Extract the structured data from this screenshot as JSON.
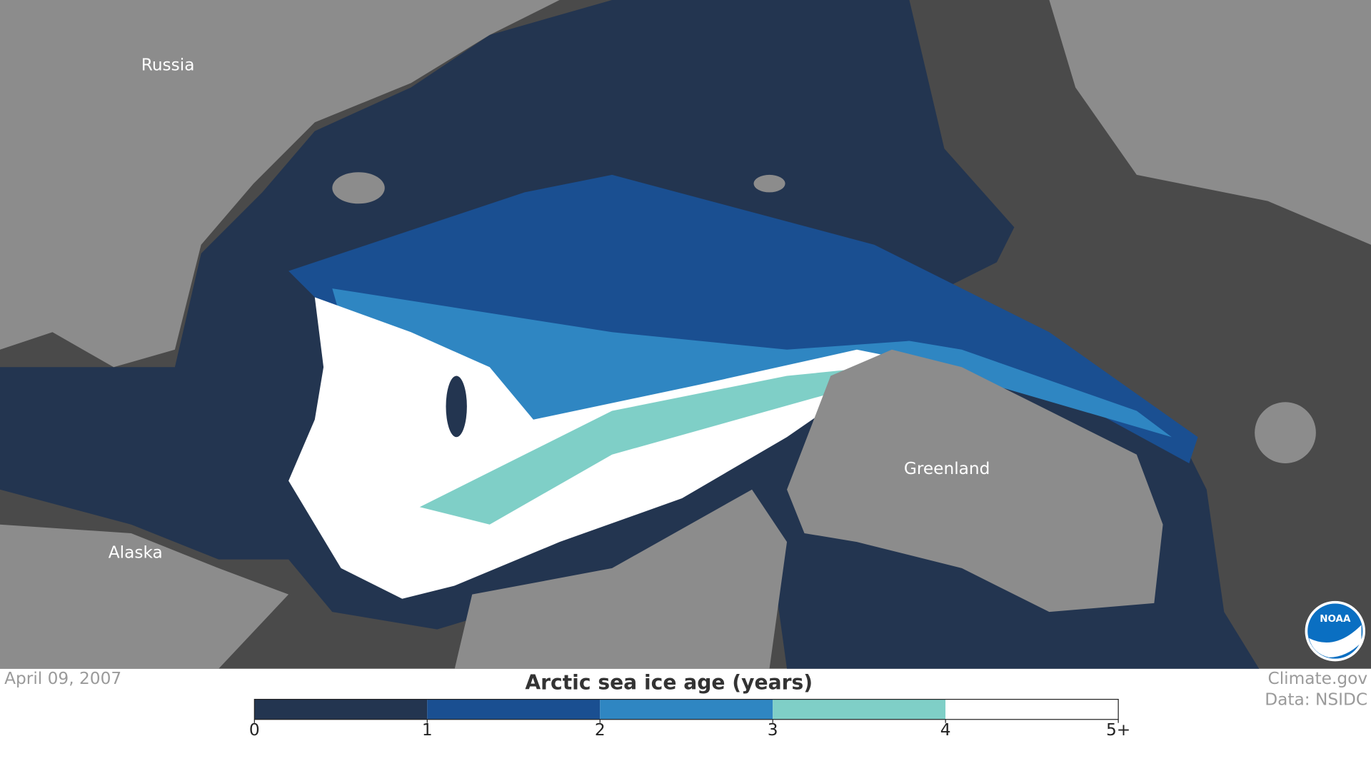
{
  "map": {
    "labels": [
      {
        "text": "Russia"
      },
      {
        "text": "Alaska"
      },
      {
        "text": "Greenland"
      }
    ],
    "date": "April 09, 2007"
  },
  "legend": {
    "title": "Arctic sea ice age (years)",
    "range": [
      0,
      5
    ],
    "ticks": [
      0,
      1,
      2,
      3,
      4,
      {
        "value": 5,
        "label": "5+"
      }
    ],
    "colors": [
      "#233550",
      "#1a4f91",
      "#2f86c2",
      "#7fcfc7",
      "#ffffff"
    ]
  },
  "credits": [
    "Climate.gov",
    "Data: NSIDC"
  ],
  "logo": "NOAA"
}
